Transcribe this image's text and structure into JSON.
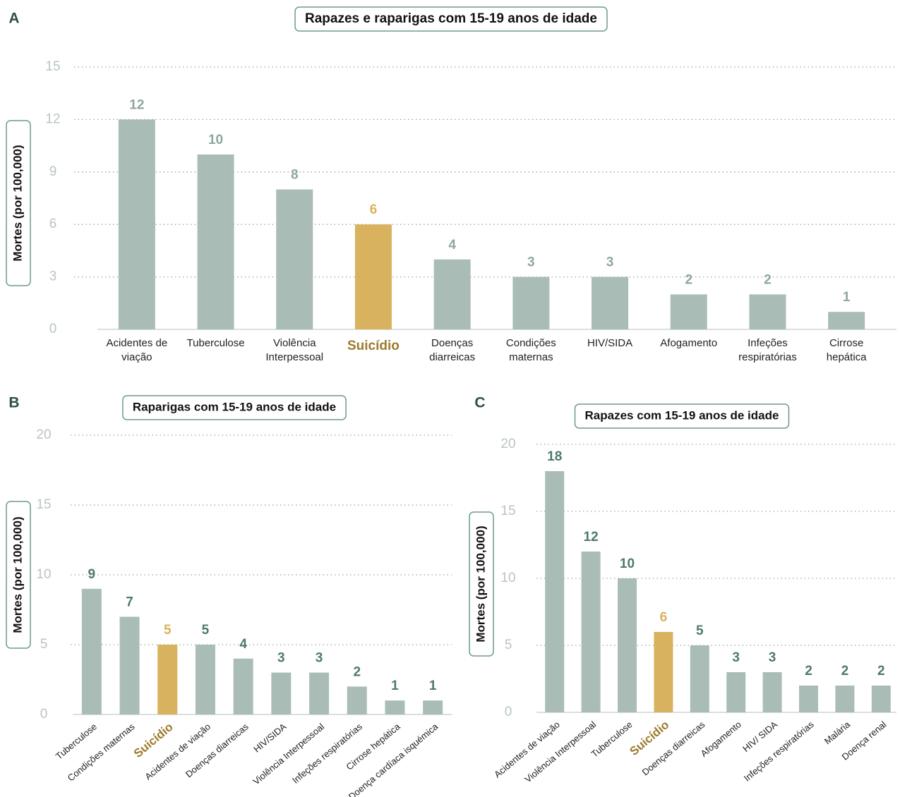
{
  "chart_data": [
    {
      "type": "bar",
      "panel": "A",
      "title": "Rapazes e raparigas com 15-19 anos de idade",
      "ylabel": "Mortes (por 100,000)",
      "categories": [
        "Acidentes de viação",
        "Tuberculose",
        "Violência Interpessoal",
        "Suicídio",
        "Doenças diarreicas",
        "Condições maternas",
        "HIV/SIDA",
        "Afogamento",
        "Infeções respiratórias",
        "Cirrose hepática"
      ],
      "values": [
        12,
        10,
        8,
        6,
        4,
        3,
        3,
        2,
        2,
        1
      ],
      "color": "#a9bdb6",
      "label_color": "#8ea79e",
      "highlight_index": 3,
      "highlight_color": "#d9b25f",
      "highlight_text_color": "#9c7b2c",
      "ylim": [
        0,
        15
      ],
      "yticks": [
        0,
        3,
        6,
        9,
        12,
        15
      ],
      "grid": true
    },
    {
      "type": "bar",
      "panel": "B",
      "title": "Raparigas com 15-19 anos de idade",
      "ylabel": "Mortes (por 100,000)",
      "categories": [
        "Tuberculose",
        "Condições maternas",
        "Suicídio",
        "Acidentes de viação",
        "Doenças diarreicas",
        "HIV/SIDA",
        "Violência Interpessoal",
        "Infeções respiratórias",
        "Cirrose hepática",
        "Doença cardíaca isquémica"
      ],
      "values": [
        9,
        7,
        5,
        5,
        4,
        3,
        3,
        2,
        1,
        1
      ],
      "color": "#a9bdb6",
      "label_color": "#4f7a6c",
      "highlight_index": 2,
      "highlight_color": "#d9b25f",
      "highlight_text_color": "#9c7b2c",
      "ylim": [
        0,
        20
      ],
      "yticks": [
        0,
        5,
        10,
        15,
        20
      ],
      "grid": true
    },
    {
      "type": "bar",
      "panel": "C",
      "title": "Rapazes com 15-19 anos de idade",
      "ylabel": "Mortes (por 100,000)",
      "categories": [
        "Acidentes de viação",
        "Violência Interpessoal",
        "Tuberculose",
        "Suicídio",
        "Doenças diarreicas",
        "Afogamento",
        "HIV/ SIDA",
        "Infeções respiratórias",
        "Malária",
        "Doença renal"
      ],
      "values": [
        18,
        12,
        10,
        6,
        5,
        3,
        3,
        2,
        2,
        2
      ],
      "color": "#a9bdb6",
      "label_color": "#4f7a6c",
      "highlight_index": 3,
      "highlight_color": "#d9b25f",
      "highlight_text_color": "#9c7b2c",
      "ylim": [
        0,
        20
      ],
      "yticks": [
        0,
        5,
        10,
        15,
        20
      ],
      "grid": true
    }
  ]
}
